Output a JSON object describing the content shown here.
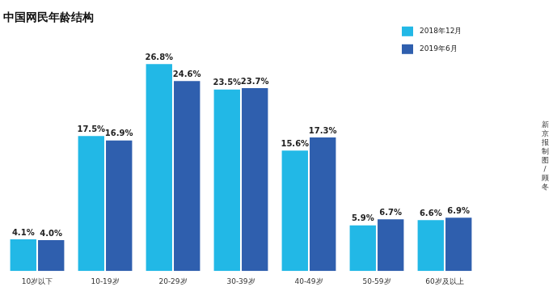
{
  "chart_data": {
    "type": "bar",
    "title": "中国网民年龄结构",
    "categories": [
      "10岁以下",
      "10-19岁",
      "20-29岁",
      "30-39岁",
      "40-49岁",
      "50-59岁",
      "60岁及以上"
    ],
    "series": [
      {
        "name": "2018年12月",
        "color": "#22b8e6",
        "values": [
          4.1,
          17.5,
          26.8,
          23.5,
          15.6,
          5.9,
          6.6
        ],
        "value_labels": [
          "4.1%",
          "17.5%",
          "26.8%",
          "23.5%",
          "15.6%",
          "5.9%",
          "6.6%"
        ]
      },
      {
        "name": "2019年6月",
        "color": "#2f5fae",
        "values": [
          4.0,
          16.9,
          24.6,
          23.7,
          17.3,
          6.7,
          6.9
        ],
        "value_labels": [
          "4.0%",
          "16.9%",
          "24.6%",
          "23.7%",
          "17.3%",
          "6.7%",
          "6.9%"
        ]
      }
    ],
    "ylim": [
      0,
      30
    ],
    "yticks": [
      0,
      10,
      20,
      30
    ],
    "grid": false,
    "legend": "upper right",
    "data_labels": true,
    "tick_labels": "x",
    "annotations": [
      "新京报制图/顾冬"
    ]
  }
}
